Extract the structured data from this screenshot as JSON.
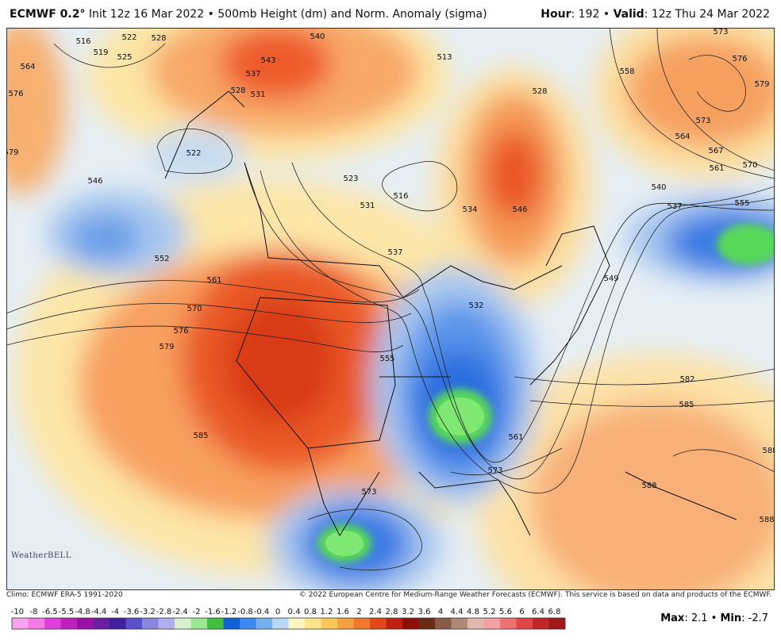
{
  "header": {
    "model": "ECMWF 0.2°",
    "description": "Init 12z 16 Mar 2022 • 500mb Height (dm) and Norm. Anomaly (sigma)",
    "hour_label": "Hour",
    "hour_value": ": 192 • ",
    "valid_label": "Valid",
    "valid_value": ": 12z Thu 24 Mar 2022"
  },
  "map": {
    "contour_labels": [
      516,
      519,
      522,
      525,
      528,
      543,
      540,
      537,
      528,
      531,
      564,
      576,
      579,
      522,
      546,
      552,
      561,
      570,
      576,
      579,
      585,
      523,
      531,
      516,
      537,
      513,
      528,
      558,
      573,
      576,
      579,
      573,
      564,
      567,
      561,
      570,
      540,
      537,
      555,
      546,
      534,
      549,
      532,
      555,
      582,
      585,
      588,
      588,
      588,
      573,
      573,
      561
    ],
    "logo": "WeatherBELL"
  },
  "footer": {
    "climo": "Climo: ECMWF ERA-5 1991-2020",
    "copyright": "© 2022 European Centre for Medium-Range Weather Forecasts (ECMWF). This service is based on data and products of the ECMWF."
  },
  "colorbar": {
    "labels": [
      -10,
      -8,
      -6.5,
      -5.5,
      -4.8,
      -4.4,
      -4,
      -3.6,
      -3.2,
      -2.8,
      -2.4,
      -2,
      -1.6,
      -1.2,
      -0.8,
      -0.4,
      0,
      0.4,
      0.8,
      1.2,
      1.6,
      2,
      2.4,
      2.8,
      3.2,
      3.6,
      4,
      4.4,
      4.8,
      5.2,
      5.6,
      6,
      6.4,
      6.8
    ],
    "colors": [
      "#f9a3f0",
      "#f47ae6",
      "#e040d8",
      "#c020c0",
      "#9a10a8",
      "#6a1ea0",
      "#4020a0",
      "#5a50c8",
      "#8888e0",
      "#b0b0f0",
      "#d8f0d0",
      "#9ae890",
      "#40c040",
      "#1060d8",
      "#3a88f0",
      "#78b0f0",
      "#b8d8f4",
      "#fff5c0",
      "#fde48a",
      "#fcc858",
      "#f8a040",
      "#f07828",
      "#e04818",
      "#c02010",
      "#8a1008",
      "#6a2a18",
      "#8a5a48",
      "#b08878",
      "#e0b8b0",
      "#f4a0a0",
      "#f07070",
      "#e04848",
      "#c02828",
      "#a01818"
    ]
  },
  "stats": {
    "max_label": "Max",
    "max_value": ": 2.1 • ",
    "min_label": "Min",
    "min_value": ": -2.7"
  }
}
